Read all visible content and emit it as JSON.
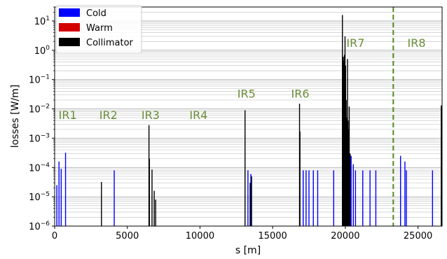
{
  "chart_data": {
    "type": "bar",
    "xlabel": "s [m]",
    "ylabel": "losses [W/m]",
    "yscale": "log",
    "xlim": [
      0,
      26659
    ],
    "ylim": [
      1e-06,
      30
    ],
    "grid": "horizontal minor and major lines on y",
    "legend": {
      "placement": "top-left",
      "entries": [
        {
          "name": "Cold",
          "color": "#0000ff"
        },
        {
          "name": "Warm",
          "color": "#d40000"
        },
        {
          "name": "Collimator",
          "color": "#000000"
        }
      ]
    },
    "x_ticks": [
      {
        "value": 0,
        "label": "0"
      },
      {
        "value": 5000,
        "label": "5000"
      },
      {
        "value": 10000,
        "label": "10000"
      },
      {
        "value": 15000,
        "label": "15000"
      },
      {
        "value": 20000,
        "label": "20000"
      },
      {
        "value": 25000,
        "label": "25000"
      }
    ],
    "y_ticks": [
      {
        "value": 1e-06,
        "base": "10",
        "exp": "−6"
      },
      {
        "value": 1e-05,
        "base": "10",
        "exp": "−5"
      },
      {
        "value": 0.0001,
        "base": "10",
        "exp": "−4"
      },
      {
        "value": 0.001,
        "base": "10",
        "exp": "−3"
      },
      {
        "value": 0.01,
        "base": "10",
        "exp": "−2"
      },
      {
        "value": 0.1,
        "base": "10",
        "exp": "−1"
      },
      {
        "value": 1,
        "base": "10",
        "exp": "0"
      },
      {
        "value": 10,
        "base": "10",
        "exp": "1"
      }
    ],
    "annotations": [
      {
        "label": "IR1",
        "x": 900,
        "y": 0.0045
      },
      {
        "label": "IR2",
        "x": 3700,
        "y": 0.0045
      },
      {
        "label": "IR3",
        "x": 6600,
        "y": 0.0045
      },
      {
        "label": "IR4",
        "x": 9900,
        "y": 0.0045
      },
      {
        "label": "IR5",
        "x": 13200,
        "y": 0.024
      },
      {
        "label": "IR6",
        "x": 16900,
        "y": 0.024
      },
      {
        "label": "IR7",
        "x": 20700,
        "y": 1.3
      },
      {
        "label": "IR8",
        "x": 24900,
        "y": 1.3
      }
    ],
    "vline": {
      "x": 23300,
      "color": "#4e8a20",
      "style": "dashed"
    },
    "series": [
      {
        "name": "Cold",
        "color": "#0000ff",
        "points": [
          {
            "x": 150,
            "y": 2.5e-05
          },
          {
            "x": 300,
            "y": 0.00016
          },
          {
            "x": 450,
            "y": 9e-05
          },
          {
            "x": 750,
            "y": 0.00032
          },
          {
            "x": 4100,
            "y": 8e-05
          },
          {
            "x": 13300,
            "y": 8e-05
          },
          {
            "x": 13500,
            "y": 6e-05
          },
          {
            "x": 17100,
            "y": 8e-05
          },
          {
            "x": 17300,
            "y": 8e-05
          },
          {
            "x": 17500,
            "y": 8e-05
          },
          {
            "x": 17800,
            "y": 8e-05
          },
          {
            "x": 18100,
            "y": 8e-05
          },
          {
            "x": 19200,
            "y": 8e-05
          },
          {
            "x": 20400,
            "y": 0.00025
          },
          {
            "x": 20550,
            "y": 0.00013
          },
          {
            "x": 20700,
            "y": 8e-05
          },
          {
            "x": 21200,
            "y": 8e-05
          },
          {
            "x": 21700,
            "y": 8e-05
          },
          {
            "x": 22100,
            "y": 8e-05
          },
          {
            "x": 23800,
            "y": 0.00025
          },
          {
            "x": 24100,
            "y": 0.00016
          },
          {
            "x": 24200,
            "y": 8e-05
          },
          {
            "x": 26000,
            "y": 8e-05
          }
        ]
      },
      {
        "name": "Collimator",
        "color": "#000000",
        "points": [
          {
            "x": 3220,
            "y": 3.2e-05
          },
          {
            "x": 6490,
            "y": 0.0028
          },
          {
            "x": 6520,
            "y": 0.0002
          },
          {
            "x": 6700,
            "y": 8.5e-05
          },
          {
            "x": 6850,
            "y": 1.6e-05
          },
          {
            "x": 6950,
            "y": 8e-06
          },
          {
            "x": 13100,
            "y": 0.009
          },
          {
            "x": 13450,
            "y": 3e-05
          },
          {
            "x": 13550,
            "y": 5e-05
          },
          {
            "x": 16850,
            "y": 0.015
          },
          {
            "x": 16880,
            "y": 0.0017
          },
          {
            "x": 19800,
            "y": 16
          },
          {
            "x": 19830,
            "y": 0.1
          },
          {
            "x": 19860,
            "y": 0.6
          },
          {
            "x": 19900,
            "y": 0.45
          },
          {
            "x": 19940,
            "y": 0.7
          },
          {
            "x": 19980,
            "y": 3
          },
          {
            "x": 20020,
            "y": 0.3
          },
          {
            "x": 20060,
            "y": 0.02
          },
          {
            "x": 20100,
            "y": 0.005
          },
          {
            "x": 20150,
            "y": 0.5
          },
          {
            "x": 20190,
            "y": 0.004
          },
          {
            "x": 20230,
            "y": 0.002
          },
          {
            "x": 20270,
            "y": 0.012
          },
          {
            "x": 20330,
            "y": 0.0003
          },
          {
            "x": 26600,
            "y": 0.013
          }
        ]
      }
    ]
  }
}
